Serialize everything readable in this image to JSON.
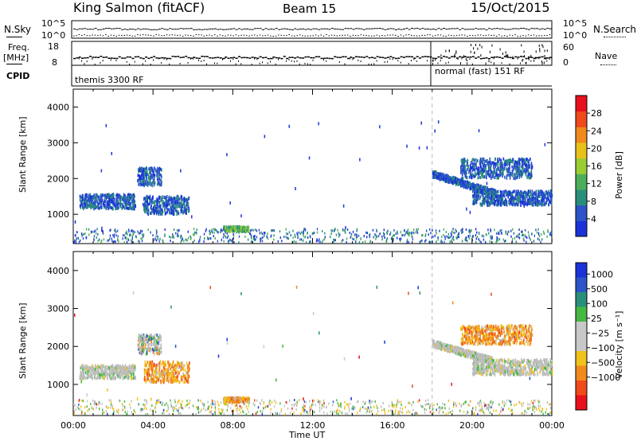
{
  "header": {
    "station": "King Salmon (fitACF)",
    "beam": "Beam 15",
    "date": "15/Oct/2015"
  },
  "status_panels": {
    "nsky": {
      "label": "N.Sky",
      "left_ticks": [
        "10^5",
        "10^0"
      ],
      "right_ticks": [
        "10^5",
        "10^0"
      ],
      "right_label": "N.Search"
    },
    "freq": {
      "label_line1": "Freq.",
      "label_line2": "[MHz]",
      "left_ticks": [
        "18",
        "8"
      ],
      "right_ticks": [
        "60",
        "0"
      ],
      "right_label": "Nave"
    },
    "cpid": {
      "label": "CPID",
      "mode1": "themis 3300 RF",
      "mode2": "normal (fast) 151 RF"
    }
  },
  "colors": {
    "power_scale": [
      "#1a33d9",
      "#2b55c8",
      "#2a8f7a",
      "#4cae5b",
      "#9acd32",
      "#e8c21a",
      "#f08a1c",
      "#f04a1c",
      "#e8101c"
    ],
    "velocity_scale": [
      "#1a33d9",
      "#2b55c8",
      "#2a8f7a",
      "#46b842",
      "#c8c8c8",
      "#c8c8c8",
      "#f0c21a",
      "#f08a1c",
      "#f04a1c",
      "#e8101c"
    ],
    "ground_scatter": "#bdbdbd"
  },
  "chart_data": [
    {
      "type": "heatmap",
      "title": "Power",
      "ylabel": "Slant Range [km]",
      "xlabel": "",
      "xlim": [
        "00:00",
        "24:00"
      ],
      "ylim": [
        180,
        4500
      ],
      "y_ticks": [
        "1000",
        "2000",
        "3000",
        "4000"
      ],
      "colorbar": {
        "label": "Power [dB]",
        "range": [
          0,
          32
        ],
        "ticks": [
          "4",
          "8",
          "12",
          "16",
          "20",
          "24",
          "28"
        ]
      },
      "features": [
        {
          "t_start": 0.3,
          "t_end": 3.1,
          "r_min": 1150,
          "r_max": 1550,
          "value_db": 6
        },
        {
          "t_start": 3.2,
          "t_end": 4.4,
          "r_min": 1800,
          "r_max": 2300,
          "value_db": 7
        },
        {
          "t_start": 3.5,
          "t_end": 5.8,
          "r_min": 1000,
          "r_max": 1500,
          "value_db": 7
        },
        {
          "t_start": 7.5,
          "t_end": 8.8,
          "r_min": 520,
          "r_max": 650,
          "value_db": 14
        },
        {
          "t_start": 18.0,
          "t_end": 21.2,
          "r_min": 1600,
          "r_max": 2150,
          "value_db": 6
        },
        {
          "t_start": 19.4,
          "t_end": 23.0,
          "r_min": 2000,
          "r_max": 2550,
          "value_db": 9
        },
        {
          "t_start": 20.0,
          "t_end": 24.0,
          "r_min": 1250,
          "r_max": 1650,
          "value_db": 6
        }
      ]
    },
    {
      "type": "heatmap",
      "title": "Velocity",
      "ylabel": "Slant Range [km]",
      "xlabel": "Time UT",
      "xlim": [
        "00:00",
        "24:00"
      ],
      "x_ticks": [
        "00:00",
        "04:00",
        "08:00",
        "12:00",
        "16:00",
        "20:00",
        "00:00"
      ],
      "ylim": [
        180,
        4500
      ],
      "y_ticks": [
        "1000",
        "2000",
        "3000",
        "4000"
      ],
      "colorbar": {
        "label": "Velocity [m s⁻¹]",
        "ticks": [
          "1000",
          "500",
          "100",
          "25",
          "−25",
          "−100",
          "−500",
          "−1000"
        ]
      },
      "features": [
        {
          "t_start": 0.3,
          "t_end": 3.1,
          "r_min": 1150,
          "r_max": 1500,
          "class": "ground"
        },
        {
          "t_start": 3.2,
          "t_end": 4.4,
          "r_min": 1800,
          "r_max": 2300,
          "class": "mixed"
        },
        {
          "t_start": 3.5,
          "t_end": 5.8,
          "r_min": 1050,
          "r_max": 1600,
          "class": "negative"
        },
        {
          "t_start": 7.5,
          "t_end": 8.8,
          "r_min": 520,
          "r_max": 650,
          "class": "negative"
        },
        {
          "t_start": 18.0,
          "t_end": 21.0,
          "r_min": 1650,
          "r_max": 2100,
          "class": "ground"
        },
        {
          "t_start": 19.4,
          "t_end": 23.0,
          "r_min": 2050,
          "r_max": 2550,
          "class": "negative"
        },
        {
          "t_start": 20.0,
          "t_end": 24.0,
          "r_min": 1250,
          "r_max": 1650,
          "class": "ground"
        }
      ]
    }
  ]
}
